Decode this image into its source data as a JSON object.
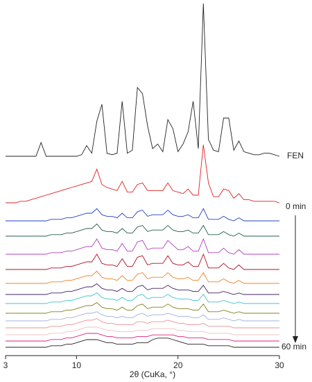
{
  "chart_data": {
    "type": "line",
    "xlabel": "2θ (CuKa, °)",
    "xlim": [
      3,
      30
    ],
    "xticks": [
      3,
      10,
      20,
      30
    ],
    "x": [
      3,
      3.5,
      4,
      4.5,
      5,
      5.5,
      6,
      6.5,
      7,
      7.5,
      8,
      8.5,
      9,
      9.5,
      10,
      10.5,
      11,
      11.5,
      12,
      12.5,
      13,
      13.5,
      14,
      14.5,
      15,
      15.5,
      16,
      16.5,
      17,
      17.5,
      18,
      18.5,
      19,
      19.5,
      20,
      20.5,
      21,
      21.5,
      22,
      22.5,
      23,
      23.5,
      24,
      24.5,
      25,
      25.5,
      26,
      26.5,
      27,
      27.5,
      28,
      28.5,
      29,
      29.5,
      30
    ],
    "series": [
      {
        "name": "FEN",
        "color": "#222222",
        "values": [
          0,
          0,
          0,
          0,
          0,
          0,
          0,
          9,
          0,
          0,
          0,
          0,
          0,
          0,
          0,
          1,
          7,
          2,
          23,
          34,
          2,
          1,
          2,
          36,
          2,
          4,
          45,
          41,
          20,
          5,
          8,
          3,
          24,
          18,
          3,
          8,
          16,
          36,
          5,
          100,
          11,
          4,
          3,
          25,
          25,
          4,
          10,
          3,
          2,
          1,
          1,
          2,
          2,
          1,
          0
        ]
      },
      {
        "name": "0 min",
        "color": "#e02020",
        "values": [
          0,
          0,
          0,
          1,
          1,
          2,
          3,
          4,
          5,
          6,
          7,
          8,
          9,
          10,
          11,
          12,
          13,
          14,
          22,
          12,
          10,
          9,
          8,
          14,
          7,
          7,
          12,
          13,
          8,
          8,
          8,
          8,
          13,
          8,
          7,
          6,
          9,
          5,
          5,
          38,
          13,
          4,
          4,
          9,
          8,
          3,
          6,
          2,
          2,
          1,
          1,
          1,
          1,
          1,
          0
        ]
      },
      {
        "color": "#2040c0",
        "values": [
          0,
          0,
          0,
          0,
          0,
          0,
          0,
          0,
          0,
          1,
          1,
          1,
          2,
          2,
          3,
          4,
          5,
          5,
          8,
          4,
          3,
          3,
          2,
          5,
          2,
          2,
          6,
          7,
          3,
          4,
          4,
          4,
          7,
          4,
          3,
          3,
          4,
          2,
          2,
          8,
          1,
          1,
          1,
          3,
          1,
          0,
          2,
          0,
          0,
          0,
          0,
          0,
          0,
          0,
          0
        ]
      },
      {
        "color": "#206040",
        "values": [
          0,
          0,
          0,
          0,
          0,
          0,
          0,
          0,
          0,
          1,
          1,
          1,
          2,
          2,
          3,
          4,
          5,
          5,
          8,
          4,
          3,
          3,
          2,
          5,
          2,
          2,
          6,
          7,
          3,
          4,
          4,
          4,
          7,
          4,
          3,
          3,
          4,
          2,
          2,
          7,
          1,
          1,
          1,
          3,
          1,
          0,
          2,
          0,
          0,
          0,
          0,
          0,
          0,
          0,
          0
        ]
      },
      {
        "color": "#b040c0",
        "values": [
          0,
          0,
          0,
          0,
          0,
          0,
          0,
          0,
          0,
          1,
          1,
          1,
          2,
          2,
          3,
          4,
          5,
          5,
          10,
          4,
          3,
          3,
          2,
          7,
          2,
          2,
          8,
          9,
          3,
          4,
          4,
          4,
          9,
          6,
          3,
          3,
          5,
          2,
          2,
          10,
          1,
          1,
          1,
          4,
          1,
          0,
          3,
          0,
          0,
          0,
          0,
          0,
          0,
          0,
          0
        ]
      },
      {
        "color": "#b01020",
        "values": [
          0,
          0,
          0,
          0,
          0,
          0,
          0,
          0,
          0,
          1,
          1,
          1,
          2,
          2,
          3,
          4,
          5,
          5,
          10,
          4,
          3,
          3,
          2,
          7,
          2,
          2,
          8,
          9,
          3,
          4,
          4,
          4,
          9,
          4,
          3,
          3,
          5,
          2,
          2,
          10,
          1,
          1,
          1,
          4,
          1,
          0,
          3,
          0,
          0,
          0,
          0,
          0,
          0,
          0,
          0
        ]
      },
      {
        "color": "#f08020",
        "values": [
          0,
          0,
          0,
          0,
          0,
          0,
          0,
          0,
          0,
          1,
          1,
          1,
          2,
          2,
          3,
          4,
          5,
          5,
          8,
          4,
          3,
          3,
          2,
          5,
          2,
          2,
          6,
          7,
          3,
          4,
          4,
          4,
          7,
          4,
          3,
          3,
          4,
          2,
          2,
          7,
          1,
          1,
          1,
          3,
          1,
          0,
          2,
          0,
          0,
          0,
          0,
          0,
          0,
          0,
          0
        ]
      },
      {
        "color": "#402060",
        "values": [
          0,
          0,
          0,
          0,
          0,
          0,
          0,
          0,
          0,
          1,
          1,
          1,
          2,
          2,
          3,
          4,
          5,
          5,
          7,
          4,
          3,
          3,
          2,
          4,
          2,
          2,
          5,
          6,
          3,
          4,
          4,
          4,
          6,
          4,
          3,
          3,
          3,
          2,
          2,
          6,
          1,
          1,
          1,
          2,
          1,
          0,
          1,
          0,
          0,
          0,
          0,
          0,
          0,
          0,
          0
        ]
      },
      {
        "color": "#40c0d0",
        "values": [
          0,
          0,
          0,
          0,
          0,
          0,
          0,
          0,
          0,
          1,
          1,
          1,
          2,
          2,
          3,
          4,
          5,
          5,
          7,
          4,
          3,
          3,
          2,
          4,
          2,
          2,
          5,
          6,
          3,
          4,
          4,
          4,
          6,
          4,
          3,
          3,
          3,
          2,
          2,
          6,
          1,
          1,
          1,
          2,
          1,
          0,
          1,
          0,
          0,
          0,
          0,
          0,
          0,
          0,
          0
        ]
      },
      {
        "color": "#808020",
        "values": [
          0,
          0,
          0,
          0,
          0,
          0,
          0,
          0,
          0,
          1,
          1,
          1,
          2,
          2,
          3,
          4,
          5,
          5,
          7,
          4,
          3,
          3,
          2,
          4,
          2,
          2,
          5,
          6,
          3,
          4,
          4,
          4,
          6,
          4,
          3,
          3,
          3,
          2,
          2,
          6,
          1,
          1,
          1,
          2,
          1,
          0,
          1,
          0,
          0,
          0,
          0,
          0,
          0,
          0,
          0
        ]
      },
      {
        "color": "#a0b0e0",
        "values": [
          0,
          0,
          0,
          0,
          0,
          0,
          0,
          0,
          0,
          1,
          1,
          1,
          2,
          2,
          3,
          4,
          5,
          5,
          6,
          4,
          3,
          3,
          2,
          3,
          2,
          2,
          4,
          5,
          3,
          4,
          4,
          4,
          5,
          4,
          3,
          3,
          3,
          2,
          2,
          4,
          1,
          1,
          1,
          2,
          1,
          0,
          1,
          0,
          0,
          0,
          0,
          0,
          0,
          0,
          0
        ]
      },
      {
        "color": "#f09090",
        "values": [
          0,
          0,
          0,
          0,
          0,
          0,
          0,
          0,
          0,
          1,
          1,
          1,
          2,
          2,
          3,
          4,
          5,
          5,
          6,
          4,
          3,
          3,
          2,
          2,
          2,
          2,
          4,
          4,
          3,
          4,
          4,
          4,
          5,
          4,
          3,
          3,
          2,
          2,
          2,
          3,
          1,
          1,
          1,
          1,
          1,
          0,
          0,
          0,
          0,
          0,
          0,
          0,
          0,
          0,
          0
        ]
      },
      {
        "color": "#f0c0c0",
        "values": [
          0,
          0,
          0,
          0,
          0,
          0,
          0,
          0,
          0,
          1,
          1,
          1,
          2,
          2,
          3,
          4,
          5,
          5,
          5,
          4,
          3,
          3,
          2,
          2,
          2,
          2,
          3,
          3,
          3,
          4,
          4,
          4,
          4,
          4,
          3,
          3,
          2,
          2,
          2,
          2,
          1,
          1,
          1,
          1,
          1,
          0,
          0,
          0,
          0,
          0,
          0,
          0,
          0,
          0,
          0
        ]
      },
      {
        "color": "#e02080",
        "values": [
          0,
          0,
          0,
          0,
          0,
          0,
          0,
          0,
          0,
          1,
          1,
          1,
          2,
          2,
          3,
          4,
          5,
          5,
          5,
          4,
          3,
          3,
          2,
          2,
          2,
          2,
          3,
          3,
          3,
          4,
          4,
          4,
          4,
          4,
          3,
          3,
          2,
          2,
          2,
          2,
          1,
          1,
          1,
          1,
          1,
          0,
          0,
          0,
          0,
          0,
          0,
          0,
          0,
          0,
          0
        ]
      },
      {
        "name": "60 min",
        "color": "#222222",
        "values": [
          0,
          0,
          0,
          0,
          0,
          0,
          0,
          0,
          0,
          1,
          1,
          1,
          2,
          2,
          3,
          4,
          5,
          5,
          5,
          4,
          3,
          3,
          2,
          2,
          2,
          2,
          3,
          3,
          3,
          5,
          6,
          6,
          6,
          5,
          4,
          3,
          2,
          2,
          2,
          2,
          1,
          1,
          1,
          1,
          1,
          0,
          0,
          0,
          0,
          0,
          0,
          0,
          0,
          0,
          0
        ]
      }
    ]
  }
}
